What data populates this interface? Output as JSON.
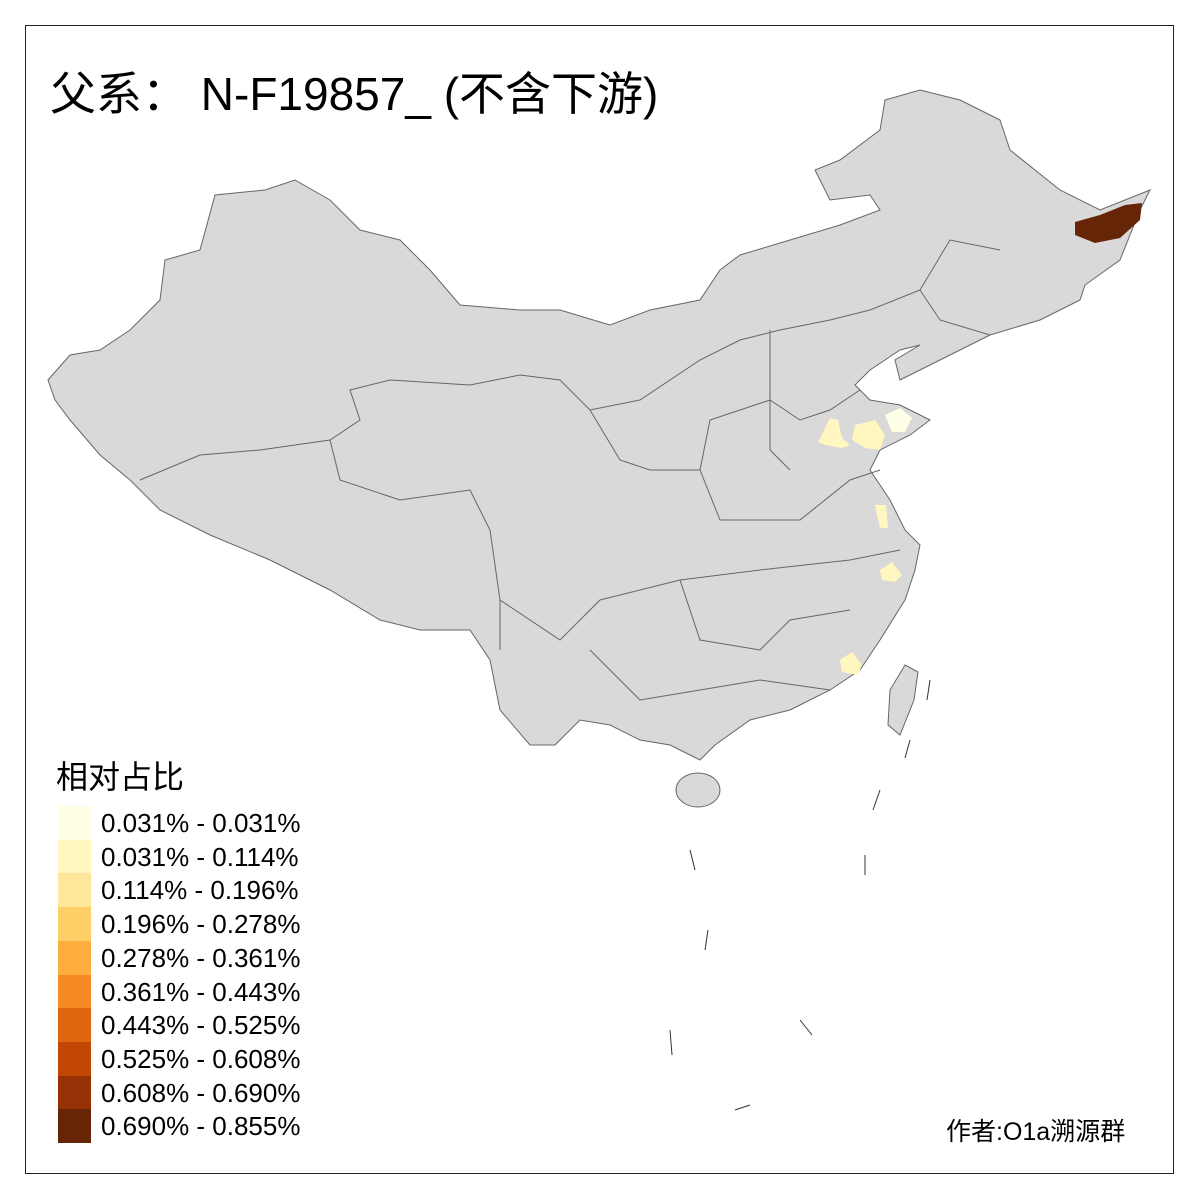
{
  "title": "父系： N-F19857_ (不含下游)",
  "legend": {
    "title": "相对占比",
    "items": [
      {
        "label": "0.031% - 0.031%",
        "color": "#FFFFE5"
      },
      {
        "label": "0.031% - 0.114%",
        "color": "#FFF6C0"
      },
      {
        "label": "0.114% - 0.196%",
        "color": "#FEE69A"
      },
      {
        "label": "0.196% - 0.278%",
        "color": "#FECF66"
      },
      {
        "label": "0.278% - 0.361%",
        "color": "#FEAE3C"
      },
      {
        "label": "0.361% - 0.443%",
        "color": "#F58A22"
      },
      {
        "label": "0.443% - 0.525%",
        "color": "#E0650F"
      },
      {
        "label": "0.525% - 0.608%",
        "color": "#C24704"
      },
      {
        "label": "0.608% - 0.690%",
        "color": "#953104"
      },
      {
        "label": "0.690% - 0.855%",
        "color": "#662506"
      }
    ]
  },
  "credit": "作者:O1a溯源群",
  "colors": {
    "land": "#D9D9D9",
    "border": "#666666",
    "no_data": "#D9D9D9"
  }
}
